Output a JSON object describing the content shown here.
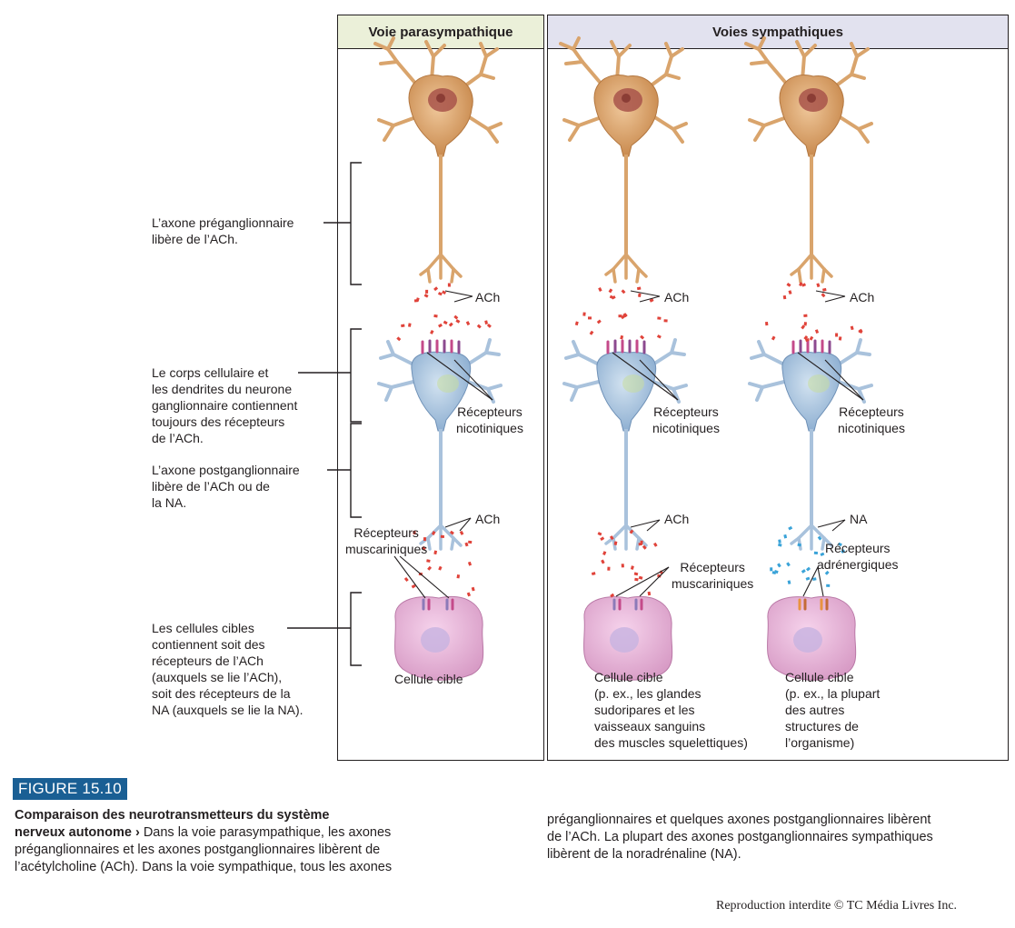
{
  "headers": {
    "parasympathetic": "Voie parasympathique",
    "sympathetic": "Voies sympathiques"
  },
  "left_labels": {
    "preganglionic": [
      "L’axone préganglionnaire",
      "libère de l’ACh."
    ],
    "cell_body": [
      "Le corps cellulaire et",
      "les dendrites du neurone",
      "ganglionnaire contiennent",
      "toujours des récepteurs",
      "de l’ACh."
    ],
    "postganglionic": [
      "L’axone postganglionnaire",
      "libère de l’ACh ou de",
      "la NA."
    ],
    "target_cells": [
      "Les cellules cibles",
      "contiennent soit des",
      "récepteurs de l’ACh",
      "(auxquels se lie l’ACh),",
      "soit des récepteurs de la",
      "NA (auxquels se lie la NA)."
    ]
  },
  "columns": {
    "para": {
      "ach_top": "ACh",
      "nicotinic": [
        "Récepteurs",
        "nicotiniques"
      ],
      "ach_bottom": "ACh",
      "muscarinic": [
        "Récepteurs",
        "muscariniques"
      ],
      "target": [
        "Cellule cible"
      ]
    },
    "symp1": {
      "ach_top": "ACh",
      "nicotinic": [
        "Récepteurs",
        "nicotiniques"
      ],
      "ach_bottom": "ACh",
      "muscarinic": [
        "Récepteurs",
        "muscariniques"
      ],
      "target": [
        "Cellule cible",
        "(p. ex., les glandes",
        "sudoripares et les",
        "vaisseaux sanguins",
        "des muscles squelettiques)"
      ]
    },
    "symp2": {
      "ach_top": "ACh",
      "nicotinic": [
        "Récepteurs",
        "nicotiniques"
      ],
      "na_bottom": "NA",
      "adrenergic": [
        "Récepteurs",
        "adrénergiques"
      ],
      "target": [
        "Cellule cible",
        "(p. ex., la plupart",
        "des autres",
        "structures de",
        "l’organisme)"
      ]
    }
  },
  "figure": {
    "tag": "FIGURE 15.10",
    "title_line1": "Comparaison des neurotransmetteurs du système",
    "title_line2": "nerveux autonome",
    "arrow": "›",
    "text_l1": " Dans la voie parasympathique, les axones",
    "text_l2": "préganglionnaires et les axones postganglionnaires libèrent de",
    "text_l3": "l’acétylcholine (ACh). Dans la voie sympathique, tous les axones",
    "text_r1": "préganglionnaires et quelques axones postganglionnaires libèrent",
    "text_r2": "de l’ACh. La plupart des axones postganglionnaires sympathiques",
    "text_r3": "libèrent de la noradrénaline (NA)."
  },
  "credit": "Reproduction interdite © TC Média Livres Inc.",
  "colors": {
    "header_para": "#ebf0d9",
    "header_symp": "#e2e2ef",
    "neuron_pre": "#d9a46c",
    "neuron_post": "#a9c2dc",
    "target": "#e8b4d8",
    "ach_dot": "#e0433a",
    "na_dot": "#3aa3d8",
    "figure_tag": "#1a5f94"
  }
}
